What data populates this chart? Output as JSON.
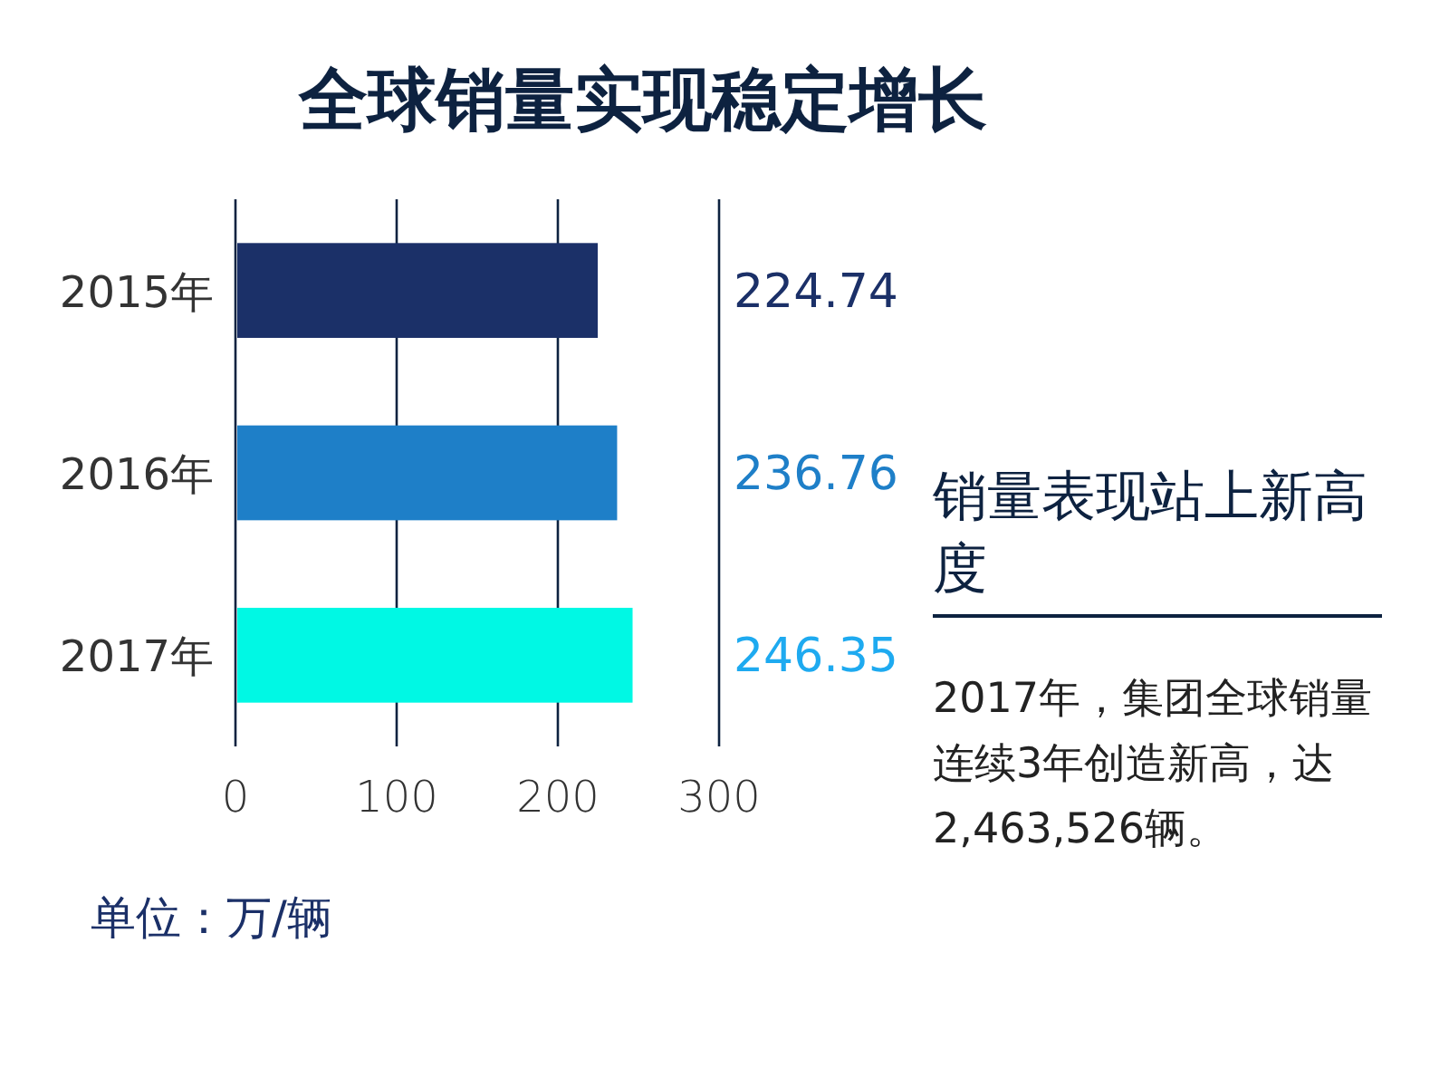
{
  "chart_data": {
    "type": "bar",
    "orientation": "horizontal",
    "title": "全球销量实现稳定增长",
    "categories": [
      "2015年",
      "2016年",
      "2017年"
    ],
    "values": [
      224.74,
      236.76,
      246.35
    ],
    "colors": [
      "#1b3068",
      "#1e7fc8",
      "#00f8e4"
    ],
    "xlim": [
      0,
      300
    ],
    "xticks": [
      0,
      100,
      200,
      300
    ],
    "grid": "x",
    "data_labels": true,
    "annotations": [
      "单位：万/辆",
      "销量表现站上新高度",
      "2017年，集团全球销量连续3年创造新高，达2,463,526辆。"
    ]
  }
}
